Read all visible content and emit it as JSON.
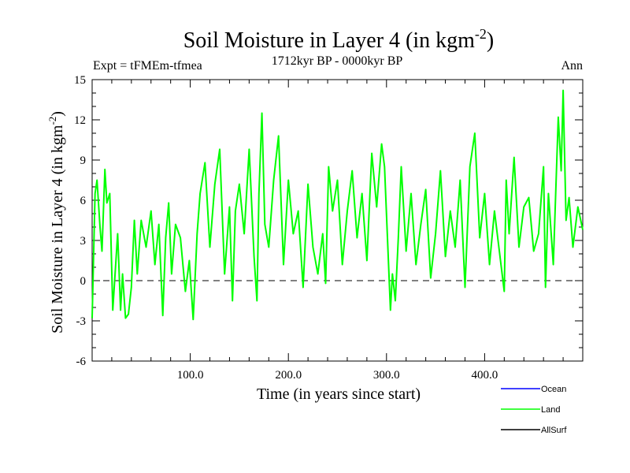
{
  "chart_data": {
    "type": "line",
    "title": "Soil Moisture in Layer 4 (in kgm",
    "title_sup": "-2",
    "title_close": ")",
    "subtitle": "1712kyr BP - 0000kyr BP",
    "expt_label": "Expt = tFMEm-tfmea",
    "season_label": "Ann",
    "xlabel": "Time (in years since start)",
    "ylabel": "Soil Moisture in Layer 4 (in kgm",
    "ylabel_sup": "-2",
    "ylabel_close": ")",
    "xlim": [
      0,
      500
    ],
    "ylim": [
      -6,
      15
    ],
    "x_ticks": [
      100,
      200,
      300,
      400
    ],
    "x_tick_labels": [
      "100.0",
      "200.0",
      "300.0",
      "400.0"
    ],
    "y_ticks": [
      -6,
      -3,
      0,
      3,
      6,
      9,
      12,
      15
    ],
    "y_tick_labels": [
      "-6",
      "-3",
      "0",
      "3",
      "6",
      "9",
      "12",
      "15"
    ],
    "reference_line": 0,
    "legend": [
      {
        "name": "Ocean",
        "color": "#0000ff"
      },
      {
        "name": "Land",
        "color": "#00ff00"
      },
      {
        "name": "AllSurf",
        "color": "#000000"
      }
    ],
    "series": [
      {
        "name": "Land",
        "color": "#00ff00",
        "x": [
          0,
          3,
          5,
          8,
          10,
          13,
          15,
          18,
          21,
          24,
          26,
          29,
          31,
          34,
          37,
          40,
          43,
          46,
          50,
          55,
          60,
          64,
          68,
          72,
          75,
          78,
          81,
          85,
          90,
          95,
          99,
          103,
          107,
          110,
          115,
          120,
          125,
          130,
          135,
          140,
          143,
          146,
          150,
          155,
          160,
          165,
          168,
          170,
          173,
          176,
          180,
          185,
          190,
          195,
          200,
          205,
          210,
          215,
          220,
          225,
          230,
          235,
          238,
          241,
          245,
          250,
          255,
          260,
          265,
          270,
          275,
          280,
          285,
          290,
          295,
          298,
          301,
          304,
          306,
          309,
          312,
          315,
          320,
          325,
          330,
          335,
          340,
          345,
          350,
          355,
          360,
          365,
          370,
          375,
          380,
          385,
          390,
          395,
          400,
          405,
          410,
          415,
          420,
          422,
          425,
          430,
          435,
          440,
          445,
          450,
          455,
          460,
          462,
          465,
          470,
          475,
          478,
          480,
          483,
          486,
          490,
          495,
          500
        ],
        "values": [
          -2.8,
          6.5,
          7.5,
          4,
          2.2,
          8.3,
          5.8,
          6.5,
          -2.2,
          1.2,
          3.5,
          -2.2,
          0.5,
          -2.8,
          -2.5,
          -0.5,
          4.5,
          0.5,
          4.5,
          2.5,
          5.2,
          1.2,
          4.2,
          -2.6,
          3.2,
          5.8,
          0.5,
          4.2,
          3.2,
          -0.8,
          1.5,
          -2.9,
          3.5,
          6.5,
          8.8,
          2.5,
          7.2,
          9.8,
          0.5,
          5.5,
          -1.5,
          5.2,
          7.2,
          3.5,
          9.8,
          1.8,
          -1.5,
          6.5,
          12.5,
          4.2,
          2.5,
          7.5,
          10.8,
          1.2,
          7.5,
          3.5,
          5.2,
          -0.5,
          7.2,
          2.5,
          0.5,
          3.5,
          -0.2,
          8.5,
          5.2,
          7.5,
          1.2,
          5.2,
          8.2,
          3.2,
          6.5,
          1.5,
          9.5,
          5.5,
          10.2,
          8.5,
          3.2,
          -2.2,
          0.5,
          -1.5,
          3.2,
          8.5,
          2.2,
          6.5,
          1.2,
          4.2,
          6.8,
          0.2,
          3.5,
          8.2,
          1.8,
          5.2,
          2.5,
          7.5,
          -0.5,
          8.5,
          11,
          3.2,
          6.5,
          1.2,
          5.2,
          2.2,
          -0.8,
          7.5,
          3.5,
          9.2,
          2.5,
          5.5,
          6.2,
          2.2,
          3.5,
          8.5,
          -0.5,
          6.5,
          1.2,
          12.2,
          8.2,
          14.2,
          4.5,
          6.2,
          2.5,
          5.5,
          3.8
        ]
      }
    ]
  }
}
